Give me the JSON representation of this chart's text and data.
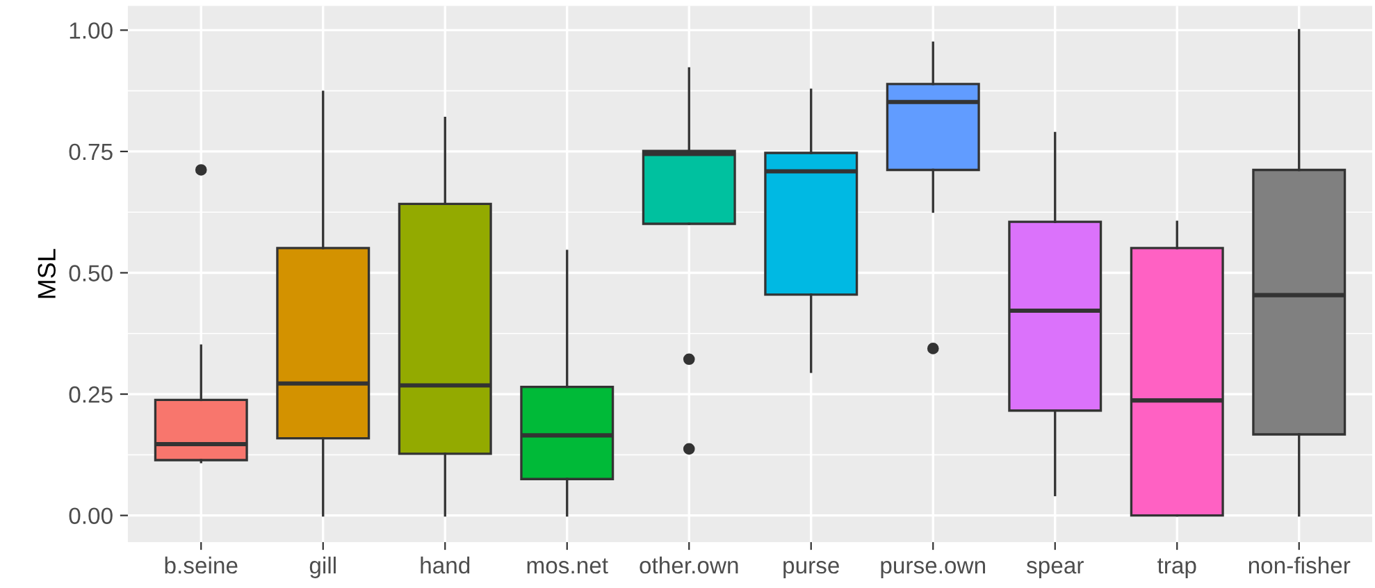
{
  "chart_data": {
    "type": "box",
    "ylabel": "MSL",
    "categories": [
      "b.seine",
      "gill",
      "hand",
      "mos.net",
      "other.own",
      "purse",
      "purse.own",
      "spear",
      "trap",
      "non-fisher"
    ],
    "colors": [
      "#f8766d",
      "#d39200",
      "#93aa00",
      "#00ba38",
      "#00c19f",
      "#00b9e3",
      "#619cff",
      "#db72fb",
      "#ff61c3",
      "#808080"
    ],
    "boxes": [
      {
        "low": 0.11,
        "q1": 0.114,
        "median": 0.147,
        "q3": 0.238,
        "high": 0.35,
        "outliers": [
          0.712
        ]
      },
      {
        "low": 0.0,
        "q1": 0.159,
        "median": 0.272,
        "q3": 0.551,
        "high": 0.873
      },
      {
        "low": 0.0,
        "q1": 0.127,
        "median": 0.268,
        "q3": 0.642,
        "high": 0.819
      },
      {
        "low": 0.0,
        "q1": 0.075,
        "median": 0.165,
        "q3": 0.265,
        "high": 0.545
      },
      {
        "low": 0.601,
        "q1": 0.601,
        "median": 0.745,
        "q3": 0.751,
        "high": 0.921,
        "outliers": [
          0.322,
          0.137
        ]
      },
      {
        "low": 0.296,
        "q1": 0.455,
        "median": 0.709,
        "q3": 0.747,
        "high": 0.877
      },
      {
        "low": 0.626,
        "q1": 0.712,
        "median": 0.852,
        "q3": 0.889,
        "high": 0.974,
        "outliers": [
          0.344
        ]
      },
      {
        "low": 0.042,
        "q1": 0.216,
        "median": 0.422,
        "q3": 0.605,
        "high": 0.788
      },
      {
        "low": 0.0,
        "q1": 0.0,
        "median": 0.237,
        "q3": 0.551,
        "high": 0.605
      },
      {
        "low": 0.0,
        "q1": 0.167,
        "median": 0.454,
        "q3": 0.712,
        "high": 1.0
      }
    ],
    "ylim": [
      -0.055,
      1.05
    ],
    "yticks": [
      {
        "value": 0,
        "label": "0.00"
      },
      {
        "value": 0.25,
        "label": "0.25"
      },
      {
        "value": 0.5,
        "label": "0.50"
      },
      {
        "value": 0.75,
        "label": "0.75"
      },
      {
        "value": 1,
        "label": "1.00"
      }
    ],
    "grid": true,
    "legend": false
  }
}
